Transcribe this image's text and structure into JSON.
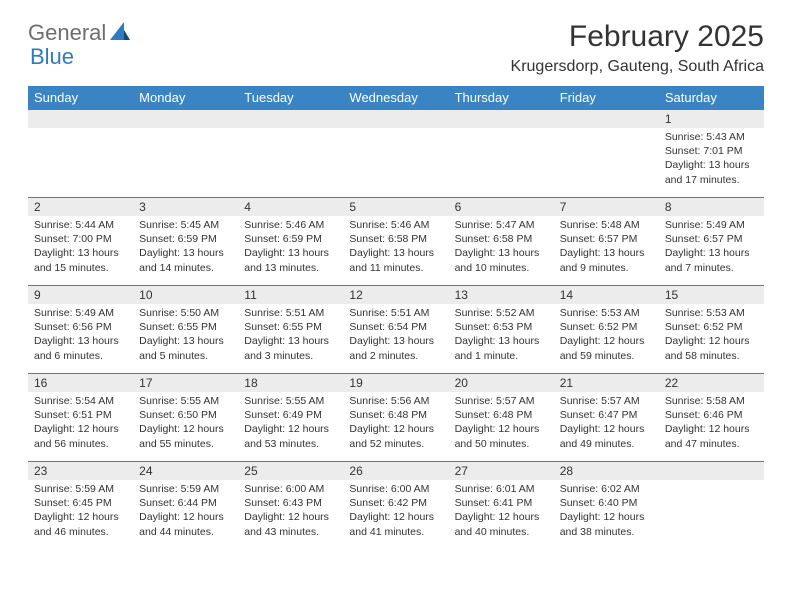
{
  "logo": {
    "text1": "General",
    "text2": "Blue"
  },
  "title": "February 2025",
  "location": "Krugersdorp, Gauteng, South Africa",
  "colors": {
    "header_bar": "#3b84c4",
    "daynum_bg": "#ececec",
    "text": "#333333",
    "logo_gray": "#6e6e6e",
    "logo_blue": "#2f7bbf",
    "cell_border": "#3b84c4",
    "background": "#ffffff"
  },
  "typography": {
    "title_fontsize": 30,
    "location_fontsize": 16,
    "dayheader_fontsize": 13,
    "daynum_fontsize": 12,
    "body_fontsize": 10.5
  },
  "day_headers": [
    "Sunday",
    "Monday",
    "Tuesday",
    "Wednesday",
    "Thursday",
    "Friday",
    "Saturday"
  ],
  "weeks": [
    [
      {
        "n": "",
        "sunrise": "",
        "sunset": "",
        "daylight": ""
      },
      {
        "n": "",
        "sunrise": "",
        "sunset": "",
        "daylight": ""
      },
      {
        "n": "",
        "sunrise": "",
        "sunset": "",
        "daylight": ""
      },
      {
        "n": "",
        "sunrise": "",
        "sunset": "",
        "daylight": ""
      },
      {
        "n": "",
        "sunrise": "",
        "sunset": "",
        "daylight": ""
      },
      {
        "n": "",
        "sunrise": "",
        "sunset": "",
        "daylight": ""
      },
      {
        "n": "1",
        "sunrise": "Sunrise: 5:43 AM",
        "sunset": "Sunset: 7:01 PM",
        "daylight": "Daylight: 13 hours and 17 minutes."
      }
    ],
    [
      {
        "n": "2",
        "sunrise": "Sunrise: 5:44 AM",
        "sunset": "Sunset: 7:00 PM",
        "daylight": "Daylight: 13 hours and 15 minutes."
      },
      {
        "n": "3",
        "sunrise": "Sunrise: 5:45 AM",
        "sunset": "Sunset: 6:59 PM",
        "daylight": "Daylight: 13 hours and 14 minutes."
      },
      {
        "n": "4",
        "sunrise": "Sunrise: 5:46 AM",
        "sunset": "Sunset: 6:59 PM",
        "daylight": "Daylight: 13 hours and 13 minutes."
      },
      {
        "n": "5",
        "sunrise": "Sunrise: 5:46 AM",
        "sunset": "Sunset: 6:58 PM",
        "daylight": "Daylight: 13 hours and 11 minutes."
      },
      {
        "n": "6",
        "sunrise": "Sunrise: 5:47 AM",
        "sunset": "Sunset: 6:58 PM",
        "daylight": "Daylight: 13 hours and 10 minutes."
      },
      {
        "n": "7",
        "sunrise": "Sunrise: 5:48 AM",
        "sunset": "Sunset: 6:57 PM",
        "daylight": "Daylight: 13 hours and 9 minutes."
      },
      {
        "n": "8",
        "sunrise": "Sunrise: 5:49 AM",
        "sunset": "Sunset: 6:57 PM",
        "daylight": "Daylight: 13 hours and 7 minutes."
      }
    ],
    [
      {
        "n": "9",
        "sunrise": "Sunrise: 5:49 AM",
        "sunset": "Sunset: 6:56 PM",
        "daylight": "Daylight: 13 hours and 6 minutes."
      },
      {
        "n": "10",
        "sunrise": "Sunrise: 5:50 AM",
        "sunset": "Sunset: 6:55 PM",
        "daylight": "Daylight: 13 hours and 5 minutes."
      },
      {
        "n": "11",
        "sunrise": "Sunrise: 5:51 AM",
        "sunset": "Sunset: 6:55 PM",
        "daylight": "Daylight: 13 hours and 3 minutes."
      },
      {
        "n": "12",
        "sunrise": "Sunrise: 5:51 AM",
        "sunset": "Sunset: 6:54 PM",
        "daylight": "Daylight: 13 hours and 2 minutes."
      },
      {
        "n": "13",
        "sunrise": "Sunrise: 5:52 AM",
        "sunset": "Sunset: 6:53 PM",
        "daylight": "Daylight: 13 hours and 1 minute."
      },
      {
        "n": "14",
        "sunrise": "Sunrise: 5:53 AM",
        "sunset": "Sunset: 6:52 PM",
        "daylight": "Daylight: 12 hours and 59 minutes."
      },
      {
        "n": "15",
        "sunrise": "Sunrise: 5:53 AM",
        "sunset": "Sunset: 6:52 PM",
        "daylight": "Daylight: 12 hours and 58 minutes."
      }
    ],
    [
      {
        "n": "16",
        "sunrise": "Sunrise: 5:54 AM",
        "sunset": "Sunset: 6:51 PM",
        "daylight": "Daylight: 12 hours and 56 minutes."
      },
      {
        "n": "17",
        "sunrise": "Sunrise: 5:55 AM",
        "sunset": "Sunset: 6:50 PM",
        "daylight": "Daylight: 12 hours and 55 minutes."
      },
      {
        "n": "18",
        "sunrise": "Sunrise: 5:55 AM",
        "sunset": "Sunset: 6:49 PM",
        "daylight": "Daylight: 12 hours and 53 minutes."
      },
      {
        "n": "19",
        "sunrise": "Sunrise: 5:56 AM",
        "sunset": "Sunset: 6:48 PM",
        "daylight": "Daylight: 12 hours and 52 minutes."
      },
      {
        "n": "20",
        "sunrise": "Sunrise: 5:57 AM",
        "sunset": "Sunset: 6:48 PM",
        "daylight": "Daylight: 12 hours and 50 minutes."
      },
      {
        "n": "21",
        "sunrise": "Sunrise: 5:57 AM",
        "sunset": "Sunset: 6:47 PM",
        "daylight": "Daylight: 12 hours and 49 minutes."
      },
      {
        "n": "22",
        "sunrise": "Sunrise: 5:58 AM",
        "sunset": "Sunset: 6:46 PM",
        "daylight": "Daylight: 12 hours and 47 minutes."
      }
    ],
    [
      {
        "n": "23",
        "sunrise": "Sunrise: 5:59 AM",
        "sunset": "Sunset: 6:45 PM",
        "daylight": "Daylight: 12 hours and 46 minutes."
      },
      {
        "n": "24",
        "sunrise": "Sunrise: 5:59 AM",
        "sunset": "Sunset: 6:44 PM",
        "daylight": "Daylight: 12 hours and 44 minutes."
      },
      {
        "n": "25",
        "sunrise": "Sunrise: 6:00 AM",
        "sunset": "Sunset: 6:43 PM",
        "daylight": "Daylight: 12 hours and 43 minutes."
      },
      {
        "n": "26",
        "sunrise": "Sunrise: 6:00 AM",
        "sunset": "Sunset: 6:42 PM",
        "daylight": "Daylight: 12 hours and 41 minutes."
      },
      {
        "n": "27",
        "sunrise": "Sunrise: 6:01 AM",
        "sunset": "Sunset: 6:41 PM",
        "daylight": "Daylight: 12 hours and 40 minutes."
      },
      {
        "n": "28",
        "sunrise": "Sunrise: 6:02 AM",
        "sunset": "Sunset: 6:40 PM",
        "daylight": "Daylight: 12 hours and 38 minutes."
      },
      {
        "n": "",
        "sunrise": "",
        "sunset": "",
        "daylight": ""
      }
    ]
  ]
}
